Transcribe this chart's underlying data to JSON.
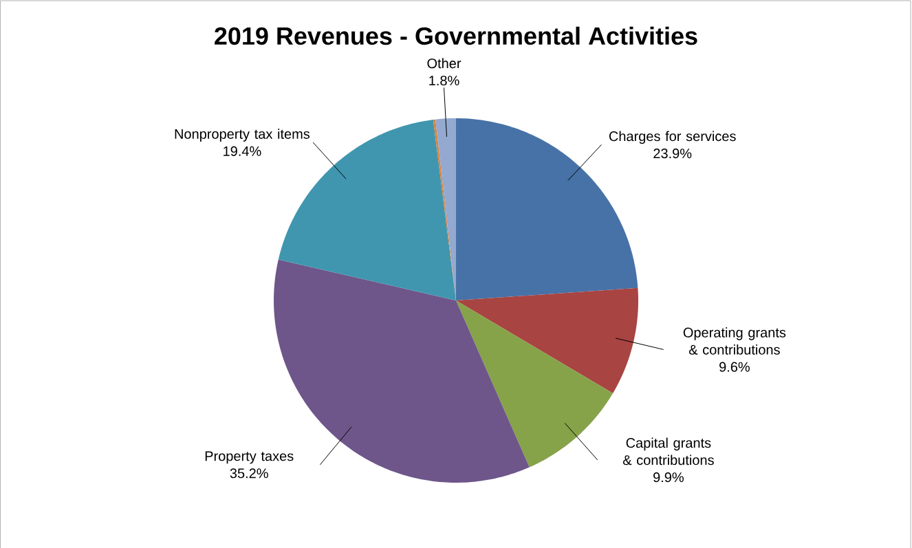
{
  "chart_data": {
    "type": "pie",
    "title": "2019 Revenues - Governmental Activities",
    "categories": [
      "Charges for services",
      "Operating grants & contributions",
      "Capital grants & contributions",
      "Property taxes",
      "Nonproperty tax items",
      null,
      "Other"
    ],
    "values": [
      23.9,
      9.6,
      9.9,
      35.2,
      19.4,
      0.2,
      1.8
    ],
    "value_labels": [
      "23.9%",
      "9.6%",
      "9.9%",
      "35.2%",
      "19.4%",
      null,
      "1.8%"
    ],
    "colors": [
      "#4672a8",
      "#a84442",
      "#87a34a",
      "#6f568a",
      "#4096ae",
      "#db843d",
      "#93a9cf"
    ]
  }
}
